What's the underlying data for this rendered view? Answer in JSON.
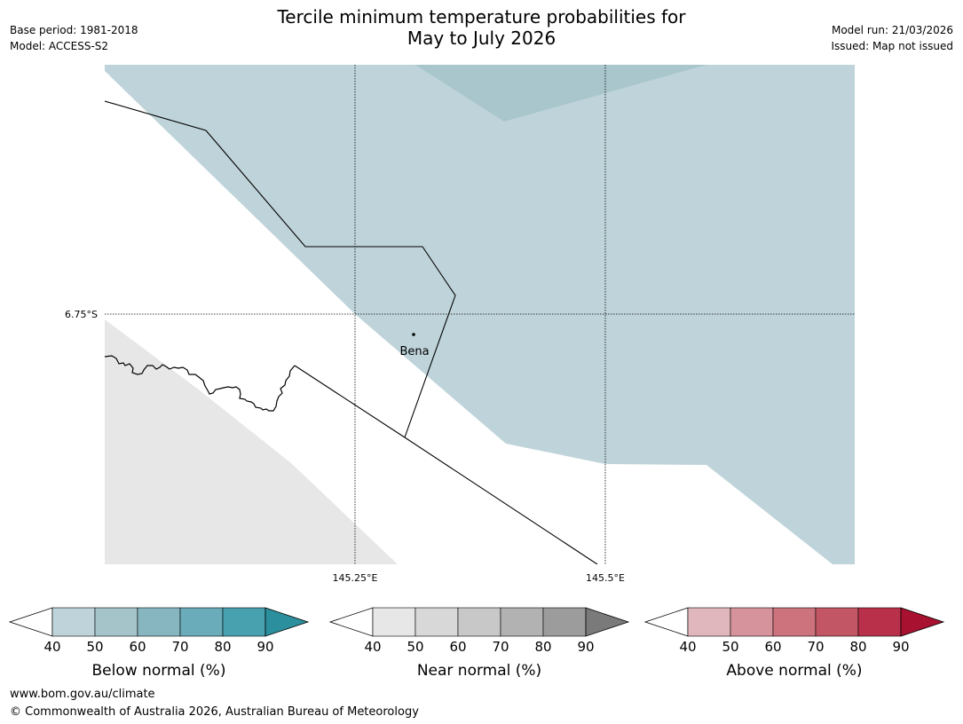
{
  "header": {
    "title_line1": "Tercile minimum temperature probabilities for",
    "title_line2": "May to July 2026",
    "base_period": "Base period: 1981-2018",
    "model": "Model: ACCESS-S2",
    "model_run": "Model run: 21/03/2026",
    "issued": "Issued: Map not issued"
  },
  "map": {
    "lat_label": "6.75°S",
    "lon_labels": [
      "145.25°E",
      "145.5°E"
    ],
    "place_name": "Bena"
  },
  "legends": [
    {
      "name": "below",
      "title": "Below normal (%)",
      "ticks": [
        "40",
        "50",
        "60",
        "70",
        "80",
        "90"
      ],
      "colors": [
        "#ffffff",
        "#bfd4da",
        "#a4c4ca",
        "#87b6c1",
        "#6aacb9",
        "#48a1ae",
        "#2b8f9e"
      ]
    },
    {
      "name": "near",
      "title": "Near normal (%)",
      "ticks": [
        "40",
        "50",
        "60",
        "70",
        "80",
        "90"
      ],
      "colors": [
        "#ffffff",
        "#e7e7e7",
        "#d8d8d8",
        "#c8c8c8",
        "#b2b2b2",
        "#9c9c9c",
        "#7a7a7a"
      ]
    },
    {
      "name": "above",
      "title": "Above normal (%)",
      "ticks": [
        "40",
        "50",
        "60",
        "70",
        "80",
        "90"
      ],
      "colors": [
        "#ffffff",
        "#e0b7bc",
        "#d6939c",
        "#cc737d",
        "#c25665",
        "#b9304a",
        "#a8112f"
      ]
    }
  ],
  "footer": {
    "url": "www.bom.gov.au/climate",
    "copyright": "© Commonwealth of Australia 2026, Australian Bureau of Meteorology"
  }
}
